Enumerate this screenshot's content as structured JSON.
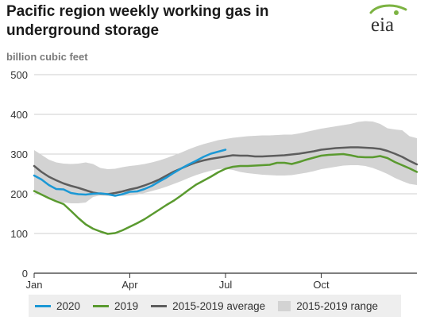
{
  "header": {
    "title": "Pacific region weekly working gas in underground storage",
    "units": "billion cubic feet",
    "logo_text": "eia"
  },
  "colors": {
    "s2020": "#1b98d5",
    "s2019": "#5a9a2f",
    "avg": "#5d5d5d",
    "range": "#d3d3d3",
    "grid": "#cfcfcf",
    "axis": "#333333",
    "logo_green": "#7cb342"
  },
  "legend": [
    {
      "key": "s2020",
      "label": "2020",
      "type": "line"
    },
    {
      "key": "s2019",
      "label": "2019",
      "type": "line"
    },
    {
      "key": "avg",
      "label": "2015-2019 average",
      "type": "line"
    },
    {
      "key": "range",
      "label": "2015-2019 range",
      "type": "box"
    }
  ],
  "chart_data": {
    "type": "line",
    "ylabel": "billion cubic feet",
    "ylim": [
      0,
      500
    ],
    "yticks": [
      0,
      100,
      200,
      300,
      400,
      500
    ],
    "xlim": [
      0,
      52
    ],
    "xticks": [
      {
        "week": 0,
        "label": "Jan"
      },
      {
        "week": 13,
        "label": "Apr"
      },
      {
        "week": 26,
        "label": "Jul"
      },
      {
        "week": 39,
        "label": "Oct"
      }
    ],
    "grid": true,
    "legend_position": "bottom",
    "range_band": {
      "name": "2015-2019 range",
      "weeks": [
        0,
        1,
        2,
        3,
        4,
        5,
        6,
        7,
        8,
        9,
        10,
        11,
        12,
        13,
        14,
        15,
        16,
        17,
        18,
        19,
        20,
        21,
        22,
        23,
        24,
        25,
        26,
        27,
        28,
        29,
        30,
        31,
        32,
        33,
        34,
        35,
        36,
        37,
        38,
        39,
        40,
        41,
        42,
        43,
        44,
        45,
        46,
        47,
        48,
        49,
        50,
        51,
        52
      ],
      "upper": [
        310,
        298,
        286,
        279,
        276,
        275,
        276,
        279,
        275,
        265,
        262,
        263,
        267,
        270,
        272,
        275,
        279,
        284,
        290,
        297,
        304,
        312,
        319,
        325,
        330,
        335,
        338,
        341,
        343,
        345,
        346,
        347,
        347,
        348,
        349,
        349,
        352,
        356,
        360,
        364,
        367,
        370,
        373,
        376,
        381,
        383,
        382,
        376,
        365,
        362,
        360,
        345,
        340
      ],
      "lower": [
        210,
        198,
        188,
        180,
        178,
        176,
        176,
        178,
        192,
        196,
        195,
        194,
        195,
        196,
        198,
        202,
        207,
        212,
        218,
        225,
        232,
        240,
        247,
        253,
        258,
        262,
        263,
        260,
        255,
        252,
        250,
        248,
        247,
        246,
        246,
        247,
        250,
        253,
        257,
        262,
        265,
        268,
        271,
        272,
        272,
        270,
        265,
        258,
        250,
        240,
        232,
        225,
        222
      ]
    },
    "series": [
      {
        "name": "2020",
        "key": "s2020",
        "weeks": [
          0,
          1,
          2,
          3,
          4,
          5,
          6,
          7,
          8,
          9,
          10,
          11,
          12,
          13,
          14,
          15,
          16,
          17,
          18,
          19,
          20,
          21,
          22,
          23,
          24,
          25,
          26
        ],
        "values": [
          246,
          236,
          222,
          212,
          211,
          202,
          199,
          198,
          200,
          201,
          199,
          195,
          199,
          205,
          206,
          212,
          220,
          231,
          241,
          253,
          264,
          274,
          283,
          293,
          301,
          306,
          311
        ]
      },
      {
        "name": "2019",
        "key": "s2019",
        "weeks": [
          0,
          1,
          2,
          3,
          4,
          5,
          6,
          7,
          8,
          9,
          10,
          11,
          12,
          13,
          14,
          15,
          16,
          17,
          18,
          19,
          20,
          21,
          22,
          23,
          24,
          25,
          26,
          27,
          28,
          29,
          30,
          31,
          32,
          33,
          34,
          35,
          36,
          37,
          38,
          39,
          40,
          41,
          42,
          43,
          44,
          45,
          46,
          47,
          48,
          49,
          50,
          51,
          52
        ],
        "values": [
          207,
          198,
          189,
          181,
          174,
          157,
          139,
          123,
          112,
          105,
          99,
          101,
          108,
          117,
          126,
          136,
          148,
          160,
          172,
          183,
          196,
          210,
          223,
          233,
          243,
          254,
          263,
          268,
          270,
          270,
          271,
          272,
          273,
          278,
          278,
          275,
          280,
          286,
          291,
          296,
          298,
          299,
          300,
          297,
          293,
          292,
          292,
          295,
          290,
          280,
          272,
          264,
          255
        ]
      },
      {
        "name": "2015-2019 average",
        "key": "avg",
        "weeks": [
          0,
          1,
          2,
          3,
          4,
          5,
          6,
          7,
          8,
          9,
          10,
          11,
          12,
          13,
          14,
          15,
          16,
          17,
          18,
          19,
          20,
          21,
          22,
          23,
          24,
          25,
          26,
          27,
          28,
          29,
          30,
          31,
          32,
          33,
          34,
          35,
          36,
          37,
          38,
          39,
          40,
          41,
          42,
          43,
          44,
          45,
          46,
          47,
          48,
          49,
          50,
          51,
          52
        ],
        "values": [
          270,
          255,
          243,
          234,
          226,
          220,
          215,
          209,
          203,
          200,
          199,
          202,
          206,
          211,
          215,
          221,
          228,
          236,
          246,
          256,
          264,
          272,
          279,
          284,
          288,
          291,
          294,
          297,
          296,
          296,
          294,
          294,
          295,
          296,
          297,
          299,
          301,
          304,
          307,
          311,
          313,
          315,
          316,
          317,
          317,
          316,
          315,
          313,
          308,
          301,
          293,
          283,
          274
        ]
      }
    ]
  }
}
